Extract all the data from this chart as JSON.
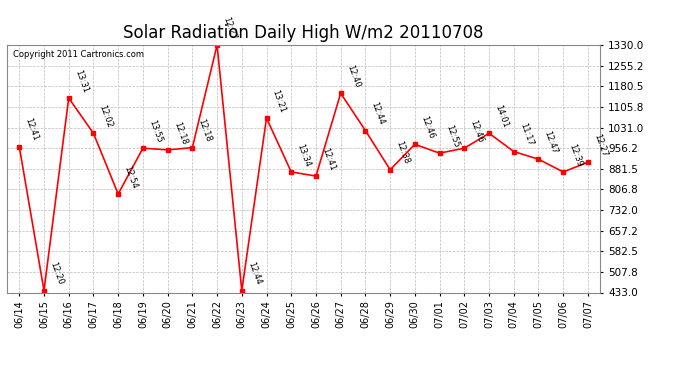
{
  "title": "Solar Radiation Daily High W/m2 20110708",
  "copyright": "Copyright 2011 Cartronics.com",
  "dates": [
    "06/14",
    "06/15",
    "06/16",
    "06/17",
    "06/18",
    "06/19",
    "06/20",
    "06/21",
    "06/22",
    "06/23",
    "06/24",
    "06/25",
    "06/26",
    "06/27",
    "06/28",
    "06/29",
    "06/30",
    "07/01",
    "07/02",
    "07/03",
    "07/04",
    "07/05",
    "07/06",
    "07/07"
  ],
  "values": [
    962,
    440,
    1138,
    1010,
    790,
    956,
    950,
    958,
    1330,
    440,
    1065,
    870,
    855,
    1155,
    1020,
    878,
    970,
    938,
    956,
    1010,
    944,
    916,
    870,
    905
  ],
  "time_labels": [
    "12:41",
    "12:20",
    "13:31",
    "12:02",
    "12:54",
    "13:55",
    "12:18",
    "12:18",
    "12:27",
    "12:44",
    "13:21",
    "13:34",
    "12:41",
    "12:40",
    "12:44",
    "12:38",
    "12:46",
    "12:55",
    "12:46",
    "14:01",
    "11:17",
    "12:47",
    "12:39",
    "12:27"
  ],
  "ymin": 433.0,
  "ymax": 1330.0,
  "yticks": [
    433.0,
    507.8,
    582.5,
    657.2,
    732.0,
    806.8,
    881.5,
    956.2,
    1031.0,
    1105.8,
    1180.5,
    1255.2,
    1330.0
  ],
  "line_color": "#ff0000",
  "marker_color": "#ff0000",
  "bg_color": "#ffffff",
  "grid_color": "#bbbbbb",
  "title_fontsize": 12,
  "label_fontsize": 7.5,
  "fig_width": 6.9,
  "fig_height": 3.75,
  "dpi": 100
}
